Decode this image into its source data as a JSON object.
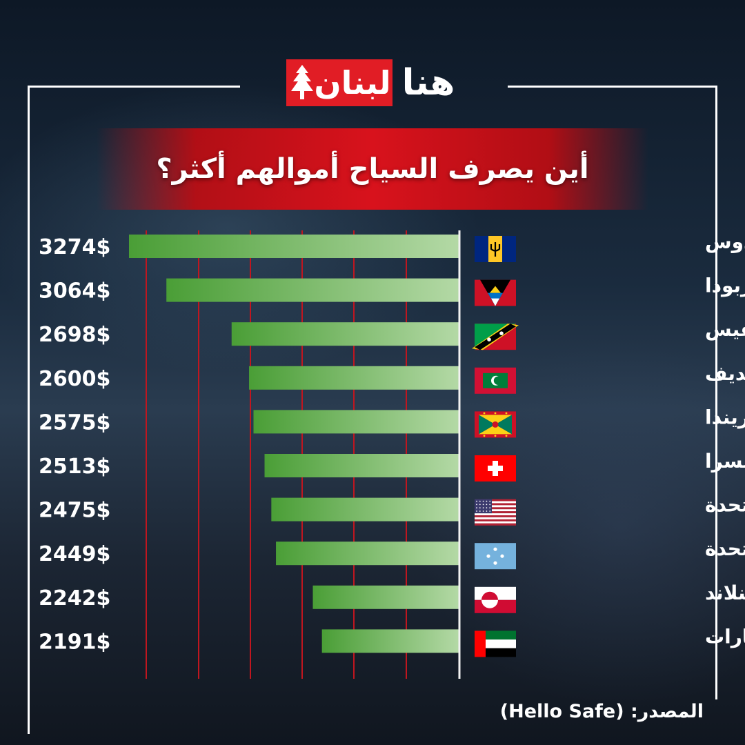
{
  "logo": {
    "brand_red": "لبنان",
    "brand_white": "هنا"
  },
  "chart_data": {
    "type": "bar",
    "orientation": "horizontal",
    "title": "أين يصرف السياح أموالهم أكثر؟",
    "categories": [
      "باربادوس",
      "انتيغا وباربودا",
      "سانت كيتس ونيفيس",
      "مالديف",
      "غريندا",
      "سويسرا",
      "الولايات المتحدة",
      "ميكرونيزيا المتحدة",
      "جرينلاند",
      "الإمارات"
    ],
    "values": [
      3274,
      3064,
      2698,
      2600,
      2575,
      2513,
      2475,
      2449,
      2242,
      2191
    ],
    "value_labels": [
      "3274$",
      "3064$",
      "2698$",
      "2600$",
      "2575$",
      "2513$",
      "2475$",
      "2449$",
      "2242$",
      "2191$"
    ],
    "flags": [
      "barbados-flag",
      "antigua-and-barbuda-flag",
      "saint-kitts-and-nevis-flag",
      "maldives-flag",
      "grenada-flag",
      "switzerland-flag",
      "united-states-flag",
      "micronesia-flag",
      "greenland-flag",
      "united-arab-emirates-flag"
    ],
    "grid": true,
    "bar_color": "#4da33a",
    "grid_color": "#c0161f"
  },
  "source": "المصدر: (Hello Safe)"
}
